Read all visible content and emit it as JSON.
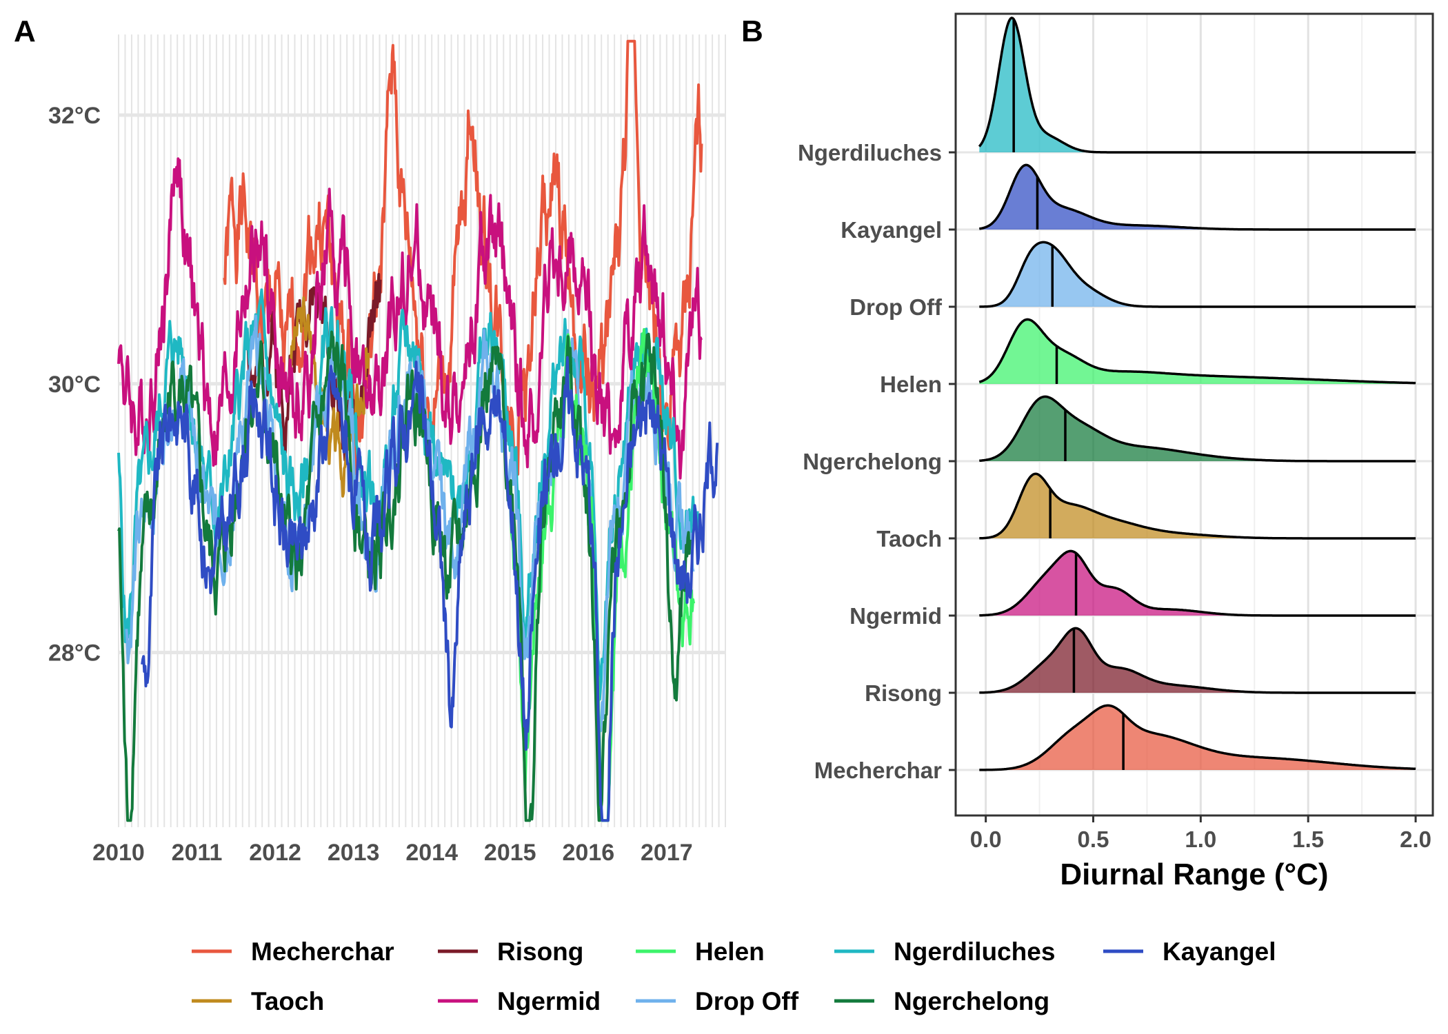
{
  "figure": {
    "panel_a_label": "A",
    "panel_b_label": "B"
  },
  "site_colors": {
    "Mecherchar": "#E8573E",
    "Risong": "#7A1A28",
    "Helen": "#3CF36B",
    "Ngerdiluches": "#1FB8C3",
    "Kayangel": "#2F4CC4",
    "Taoch": "#C08A1E",
    "Ngermid": "#C8107E",
    "Drop Off": "#6FB1EC",
    "Ngerchelong": "#137A3C"
  },
  "chart_data": [
    {
      "id": "panel-a",
      "type": "line",
      "title": "",
      "xlabel": "",
      "ylabel": "",
      "x_ticks": [
        "2010",
        "2011",
        "2012",
        "2013",
        "2014",
        "2015",
        "2016",
        "2017"
      ],
      "y_ticks": [
        "28°C",
        "30°C",
        "32°C"
      ],
      "xlim": [
        2010.0,
        2017.75
      ],
      "ylim": [
        26.7,
        32.6
      ],
      "grid": true,
      "series": [
        {
          "name": "Mecherchar",
          "start": 2011.35,
          "end": 2017.45,
          "base": 30.55,
          "amp": 0.7,
          "phase": 0.3,
          "noise": 0.5,
          "seed": 1,
          "peaks": [
            [
              2012.0,
              0.7
            ],
            [
              2013.5,
              1.0
            ],
            [
              2014.5,
              0.9
            ],
            [
              2016.55,
              1.2
            ],
            [
              2017.4,
              0.9
            ]
          ]
        },
        {
          "name": "Risong",
          "start": 2011.65,
          "end": 2013.35,
          "base": 30.2,
          "amp": 0.5,
          "phase": 0.2,
          "noise": 0.35,
          "seed": 2,
          "peaks": [
            [
              2011.95,
              0.8
            ]
          ]
        },
        {
          "name": "Taoch",
          "start": 2012.2,
          "end": 2013.2,
          "base": 29.9,
          "amp": 0.5,
          "phase": 0.1,
          "noise": 0.3,
          "seed": 3,
          "peaks": []
        },
        {
          "name": "Ngermid",
          "start": 2010.0,
          "end": 2017.45,
          "base": 30.35,
          "amp": 0.6,
          "phase": 0.5,
          "noise": 0.45,
          "seed": 4,
          "peaks": [
            [
              2010.75,
              0.8
            ],
            [
              2015.5,
              0.7
            ],
            [
              2017.35,
              0.6
            ]
          ]
        },
        {
          "name": "Ngerdiluches",
          "start": 2010.0,
          "end": 2017.4,
          "base": 29.7,
          "amp": 0.6,
          "phase": 0.5,
          "noise": 0.35,
          "seed": 5,
          "peaks": [
            [
              2010.1,
              -1.2
            ],
            [
              2015.2,
              -0.9
            ],
            [
              2016.15,
              -1.6
            ]
          ]
        },
        {
          "name": "Drop Off",
          "start": 2010.1,
          "end": 2017.35,
          "base": 29.45,
          "amp": 0.6,
          "phase": 0.5,
          "noise": 0.35,
          "seed": 6,
          "peaks": [
            [
              2010.1,
              -1.0
            ],
            [
              2015.2,
              -1.0
            ],
            [
              2016.15,
              -1.7
            ]
          ]
        },
        {
          "name": "Helen",
          "start": 2015.0,
          "end": 2017.35,
          "base": 29.2,
          "amp": 0.7,
          "phase": 0.5,
          "noise": 0.4,
          "seed": 7,
          "peaks": [
            [
              2015.2,
              -1.2
            ],
            [
              2016.2,
              -1.8
            ]
          ]
        },
        {
          "name": "Ngerchelong",
          "start": 2010.0,
          "end": 2017.3,
          "base": 29.3,
          "amp": 0.7,
          "phase": 0.5,
          "noise": 0.4,
          "seed": 8,
          "peaks": [
            [
              2010.12,
              -2.1
            ],
            [
              2015.25,
              -2.0
            ],
            [
              2016.15,
              -1.9
            ],
            [
              2017.1,
              -1.2
            ]
          ]
        },
        {
          "name": "Kayangel",
          "start": 2010.3,
          "end": 2017.65,
          "base": 29.25,
          "amp": 0.6,
          "phase": 0.5,
          "noise": 0.4,
          "seed": 9,
          "peaks": [
            [
              2010.35,
              -0.9
            ],
            [
              2014.25,
              -1.1
            ],
            [
              2015.2,
              -1.2
            ],
            [
              2016.2,
              -2.2
            ]
          ]
        }
      ]
    },
    {
      "id": "panel-b",
      "type": "area",
      "title": "",
      "xlabel": "Diurnal Range (°C)",
      "ylabel": "",
      "x_ticks": [
        "0.0",
        "0.5",
        "1.0",
        "1.5",
        "2.0"
      ],
      "xlim": [
        -0.14,
        2.08
      ],
      "grid": true,
      "series": [
        {
          "name": "Mecherchar",
          "median": 0.64,
          "peaks": [
            [
              0.42,
              0.12,
              0.35
            ],
            [
              0.58,
              0.08,
              0.3
            ],
            [
              0.75,
              0.2,
              0.35
            ],
            [
              1.2,
              0.3,
              0.1
            ],
            [
              1.5,
              0.3,
              0.04
            ]
          ]
        },
        {
          "name": "Risong",
          "median": 0.41,
          "peaks": [
            [
              0.3,
              0.1,
              0.4
            ],
            [
              0.43,
              0.07,
              0.65
            ],
            [
              0.62,
              0.1,
              0.28
            ],
            [
              0.85,
              0.18,
              0.1
            ]
          ]
        },
        {
          "name": "Ngermid",
          "median": 0.42,
          "peaks": [
            [
              0.3,
              0.1,
              0.5
            ],
            [
              0.42,
              0.07,
              0.55
            ],
            [
              0.6,
              0.08,
              0.32
            ],
            [
              0.85,
              0.15,
              0.08
            ]
          ]
        },
        {
          "name": "Taoch",
          "median": 0.3,
          "peaks": [
            [
              0.22,
              0.07,
              0.75
            ],
            [
              0.38,
              0.1,
              0.3
            ],
            [
              0.55,
              0.15,
              0.22
            ],
            [
              0.85,
              0.2,
              0.06
            ]
          ]
        },
        {
          "name": "Ngerchelong",
          "median": 0.37,
          "peaks": [
            [
              0.25,
              0.09,
              0.6
            ],
            [
              0.42,
              0.12,
              0.35
            ],
            [
              0.7,
              0.2,
              0.15
            ],
            [
              1.0,
              0.2,
              0.03
            ]
          ]
        },
        {
          "name": "Helen",
          "median": 0.33,
          "peaks": [
            [
              0.18,
              0.08,
              0.7
            ],
            [
              0.35,
              0.1,
              0.3
            ],
            [
              0.6,
              0.2,
              0.1
            ],
            [
              0.9,
              0.3,
              0.07
            ],
            [
              1.4,
              0.35,
              0.05
            ]
          ]
        },
        {
          "name": "Drop Off",
          "median": 0.31,
          "peaks": [
            [
              0.2,
              0.06,
              0.5
            ],
            [
              0.3,
              0.08,
              0.85
            ],
            [
              0.45,
              0.1,
              0.3
            ]
          ]
        },
        {
          "name": "Kayangel",
          "median": 0.24,
          "peaks": [
            [
              0.18,
              0.07,
              0.85
            ],
            [
              0.35,
              0.12,
              0.3
            ],
            [
              0.7,
              0.2,
              0.06
            ]
          ]
        },
        {
          "name": "Ngerdiluches",
          "median": 0.13,
          "peaks": [
            [
              0.12,
              0.06,
              1.0
            ],
            [
              0.28,
              0.08,
              0.12
            ]
          ]
        }
      ]
    }
  ],
  "legend": {
    "position": "bottom",
    "items": [
      "Mecherchar",
      "Risong",
      "Helen",
      "Ngerdiluches",
      "Kayangel",
      "Taoch",
      "Ngermid",
      "Drop Off",
      "Ngerchelong"
    ]
  }
}
